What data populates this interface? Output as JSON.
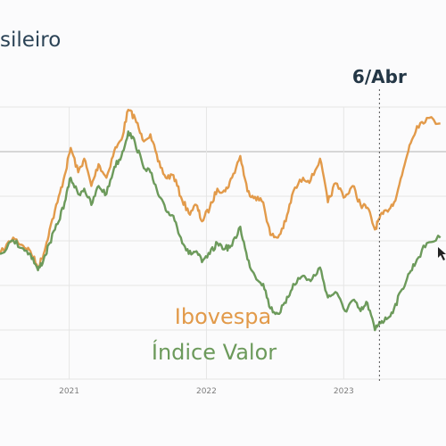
{
  "chart_data": {
    "type": "line",
    "title": "sileiro",
    "xlabel": "",
    "ylabel": "",
    "x_range": [
      "2020-07-01",
      "2023-09-30"
    ],
    "y_range": [
      0,
      100
    ],
    "x_ticks": [
      {
        "label": "2021",
        "date": "2021-01-01"
      },
      {
        "label": "2022",
        "date": "2022-01-01"
      },
      {
        "label": "2023",
        "date": "2023-01-01"
      }
    ],
    "grid": true,
    "reference_line": {
      "label": "6/Abr",
      "date": "2023-04-06"
    },
    "series": [
      {
        "name": "Ibovespa",
        "color": "#e29a4a",
        "points": [
          [
            "2020-07-01",
            46
          ],
          [
            "2020-08-05",
            52
          ],
          [
            "2020-09-01",
            49
          ],
          [
            "2020-09-20",
            47
          ],
          [
            "2020-10-10",
            41
          ],
          [
            "2020-10-25",
            46
          ],
          [
            "2020-11-10",
            55
          ],
          [
            "2020-12-01",
            65
          ],
          [
            "2020-12-20",
            75
          ],
          [
            "2021-01-05",
            85
          ],
          [
            "2021-01-25",
            76
          ],
          [
            "2021-02-10",
            81
          ],
          [
            "2021-03-01",
            71
          ],
          [
            "2021-03-20",
            79
          ],
          [
            "2021-04-10",
            74
          ],
          [
            "2021-05-01",
            84
          ],
          [
            "2021-05-20",
            88
          ],
          [
            "2021-06-07",
            99
          ],
          [
            "2021-06-25",
            96
          ],
          [
            "2021-07-15",
            88
          ],
          [
            "2021-08-05",
            90
          ],
          [
            "2021-08-25",
            80
          ],
          [
            "2021-09-15",
            74
          ],
          [
            "2021-10-05",
            75
          ],
          [
            "2021-10-25",
            67
          ],
          [
            "2021-11-15",
            61
          ],
          [
            "2021-12-05",
            64
          ],
          [
            "2021-12-20",
            58
          ],
          [
            "2022-01-10",
            63
          ],
          [
            "2022-01-30",
            70
          ],
          [
            "2022-02-20",
            69
          ],
          [
            "2022-03-10",
            74
          ],
          [
            "2022-04-01",
            82
          ],
          [
            "2022-04-20",
            69
          ],
          [
            "2022-05-10",
            67
          ],
          [
            "2022-06-01",
            65
          ],
          [
            "2022-06-20",
            53
          ],
          [
            "2022-07-10",
            52
          ],
          [
            "2022-07-31",
            58
          ],
          [
            "2022-08-20",
            69
          ],
          [
            "2022-09-15",
            74
          ],
          [
            "2022-10-05",
            73
          ],
          [
            "2022-10-30",
            81
          ],
          [
            "2022-11-20",
            65
          ],
          [
            "2022-12-10",
            72
          ],
          [
            "2023-01-05",
            67
          ],
          [
            "2023-01-25",
            71
          ],
          [
            "2023-02-15",
            64
          ],
          [
            "2023-03-05",
            63
          ],
          [
            "2023-03-25",
            55
          ],
          [
            "2023-04-06",
            59
          ],
          [
            "2023-04-25",
            62
          ],
          [
            "2023-05-15",
            65
          ],
          [
            "2023-06-05",
            75
          ],
          [
            "2023-06-25",
            86
          ],
          [
            "2023-07-15",
            93
          ],
          [
            "2023-08-10",
            96
          ],
          [
            "2023-09-15",
            94
          ]
        ]
      },
      {
        "name": "Índice Valor",
        "color": "#6c9a5b",
        "points": [
          [
            "2020-07-01",
            46
          ],
          [
            "2020-08-05",
            51
          ],
          [
            "2020-09-01",
            48
          ],
          [
            "2020-09-20",
            46
          ],
          [
            "2020-10-10",
            40
          ],
          [
            "2020-10-25",
            44
          ],
          [
            "2020-11-10",
            50
          ],
          [
            "2020-12-01",
            57
          ],
          [
            "2020-12-20",
            65
          ],
          [
            "2021-01-05",
            74
          ],
          [
            "2021-01-25",
            68
          ],
          [
            "2021-02-10",
            70
          ],
          [
            "2021-03-01",
            64
          ],
          [
            "2021-03-20",
            71
          ],
          [
            "2021-04-10",
            68
          ],
          [
            "2021-05-01",
            78
          ],
          [
            "2021-05-20",
            82
          ],
          [
            "2021-06-07",
            91
          ],
          [
            "2021-06-25",
            87
          ],
          [
            "2021-07-15",
            79
          ],
          [
            "2021-08-05",
            76
          ],
          [
            "2021-08-25",
            68
          ],
          [
            "2021-09-15",
            62
          ],
          [
            "2021-10-05",
            60
          ],
          [
            "2021-10-25",
            52
          ],
          [
            "2021-11-15",
            46
          ],
          [
            "2021-12-05",
            47
          ],
          [
            "2021-12-20",
            43
          ],
          [
            "2022-01-10",
            46
          ],
          [
            "2022-01-30",
            50
          ],
          [
            "2022-02-20",
            48
          ],
          [
            "2022-03-10",
            49
          ],
          [
            "2022-04-01",
            56
          ],
          [
            "2022-04-20",
            44
          ],
          [
            "2022-05-10",
            38
          ],
          [
            "2022-06-01",
            35
          ],
          [
            "2022-06-20",
            26
          ],
          [
            "2022-07-10",
            24
          ],
          [
            "2022-07-31",
            28
          ],
          [
            "2022-08-20",
            35
          ],
          [
            "2022-09-15",
            38
          ],
          [
            "2022-10-05",
            36
          ],
          [
            "2022-10-30",
            41
          ],
          [
            "2022-11-20",
            30
          ],
          [
            "2022-12-10",
            32
          ],
          [
            "2023-01-05",
            25
          ],
          [
            "2023-01-25",
            29
          ],
          [
            "2023-02-15",
            25
          ],
          [
            "2023-03-05",
            28
          ],
          [
            "2023-03-25",
            18
          ],
          [
            "2023-04-06",
            21
          ],
          [
            "2023-04-25",
            22
          ],
          [
            "2023-05-15",
            26
          ],
          [
            "2023-06-05",
            33
          ],
          [
            "2023-06-25",
            39
          ],
          [
            "2023-07-15",
            44
          ],
          [
            "2023-08-10",
            50
          ],
          [
            "2023-09-15",
            52
          ]
        ]
      }
    ]
  }
}
